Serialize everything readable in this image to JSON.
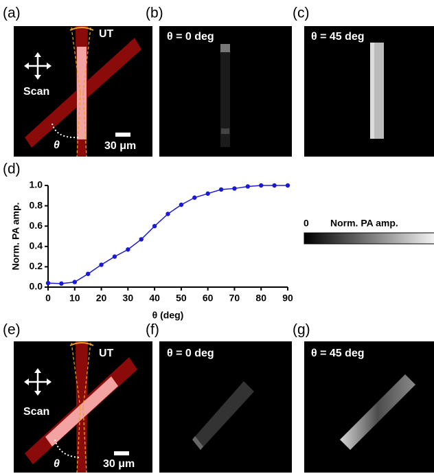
{
  "panel_labels": [
    "(a)",
    "(b)",
    "(c)",
    "(d)",
    "(e)",
    "(f)",
    "(g)"
  ],
  "schematic": {
    "transducer": "UT",
    "scan": "Scan",
    "angle": "θ",
    "scale_bar": "30 μm"
  },
  "image_labels": [
    "θ = 0 deg",
    "θ = 45 deg"
  ],
  "colorbar": {
    "min_label": "0",
    "title": "Norm. PA amp."
  },
  "chart_data": {
    "type": "line",
    "x": [
      0,
      5,
      10,
      15,
      20,
      25,
      30,
      35,
      40,
      45,
      50,
      55,
      60,
      65,
      70,
      75,
      80,
      85,
      90
    ],
    "values": [
      0.04,
      0.035,
      0.05,
      0.13,
      0.22,
      0.3,
      0.37,
      0.47,
      0.6,
      0.72,
      0.81,
      0.88,
      0.92,
      0.96,
      0.97,
      0.99,
      1.0,
      1.0,
      1.0
    ],
    "color": "#1a1ad6",
    "xlabel": "θ (deg)",
    "ylabel": "Norm. PA amp.",
    "xlim": [
      0,
      90
    ],
    "xticks": [
      0,
      10,
      20,
      30,
      40,
      50,
      60,
      70,
      80,
      90
    ],
    "ylim": [
      0,
      1
    ],
    "yticks": [
      {
        "value": 0,
        "label": "0.0"
      },
      0.2,
      0.4,
      0.6,
      0.8,
      {
        "value": 1,
        "label": "1.0"
      }
    ]
  }
}
